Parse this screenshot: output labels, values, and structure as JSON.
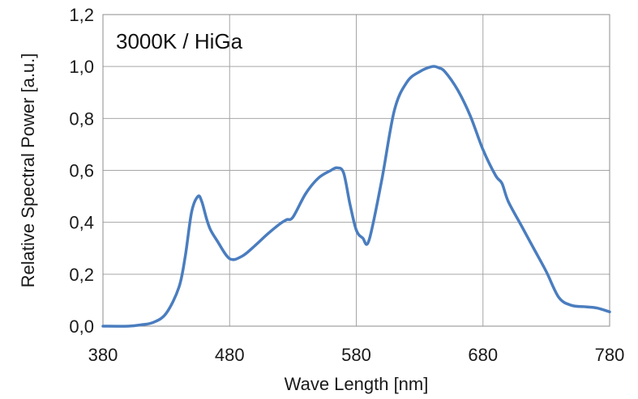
{
  "chart_data": {
    "type": "line",
    "title": "3000K / HiGa",
    "xlabel": "Wave Length [nm]",
    "ylabel": "Relative Spectral Power [a.u.]",
    "xlim": [
      380,
      780
    ],
    "ylim": [
      0,
      1.2
    ],
    "xticks": [
      380,
      480,
      580,
      680,
      780
    ],
    "xtick_labels": [
      "380",
      "480",
      "580",
      "680",
      "780"
    ],
    "yticks": [
      0,
      0.2,
      0.4,
      0.6,
      0.8,
      1.0,
      1.2
    ],
    "ytick_labels": [
      "0,0",
      "0,2",
      "0,4",
      "0,6",
      "0,8",
      "1,0",
      "1,2"
    ],
    "grid": true,
    "legend": "none",
    "series_color": "#4a7dbf",
    "series": [
      {
        "x": [
          380,
          400,
          410,
          420,
          430,
          440,
          445,
          450,
          455,
          458,
          462,
          465,
          470,
          480,
          490,
          500,
          510,
          520,
          525,
          530,
          540,
          550,
          560,
          565,
          570,
          575,
          580,
          585,
          590,
          600,
          610,
          620,
          630,
          640,
          645,
          650,
          660,
          670,
          680,
          690,
          695,
          700,
          710,
          720,
          730,
          740,
          750,
          760,
          770,
          780
        ],
        "y": [
          0.0,
          0.0,
          0.005,
          0.015,
          0.05,
          0.15,
          0.27,
          0.44,
          0.5,
          0.48,
          0.41,
          0.37,
          0.33,
          0.26,
          0.27,
          0.31,
          0.355,
          0.395,
          0.41,
          0.42,
          0.51,
          0.57,
          0.6,
          0.61,
          0.59,
          0.47,
          0.37,
          0.34,
          0.33,
          0.56,
          0.83,
          0.94,
          0.98,
          1.0,
          0.995,
          0.98,
          0.91,
          0.81,
          0.68,
          0.58,
          0.55,
          0.48,
          0.39,
          0.3,
          0.21,
          0.11,
          0.08,
          0.075,
          0.07,
          0.055
        ]
      }
    ]
  }
}
